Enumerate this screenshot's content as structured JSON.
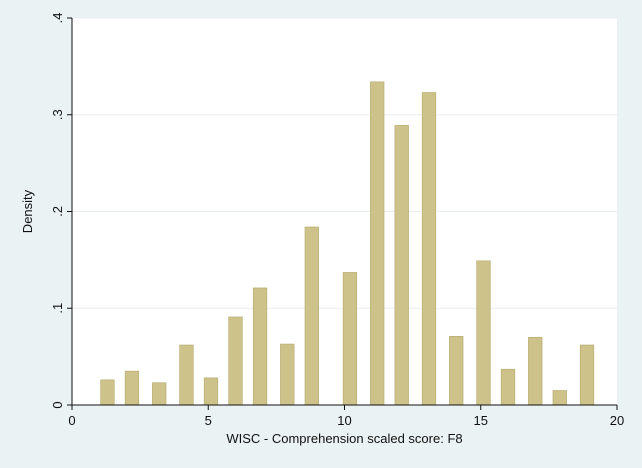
{
  "chart_data": {
    "type": "bar",
    "xlabel": "WISC - Comprehension scaled score: F8",
    "ylabel": "Density",
    "xlim": [
      0,
      20
    ],
    "ylim": [
      0,
      0.4
    ],
    "x_ticks": [
      0,
      5,
      10,
      15,
      20
    ],
    "x_tick_labels": [
      "0",
      "5",
      "10",
      "15",
      "20"
    ],
    "y_ticks": [
      0,
      0.1,
      0.2,
      0.3,
      0.4
    ],
    "y_tick_labels": [
      "0",
      ".1",
      ".2",
      ".3",
      ".4"
    ],
    "grid": true,
    "bar_width": 0.5,
    "x": [
      1.3,
      2.2,
      3.2,
      4.2,
      5.1,
      6.0,
      6.9,
      7.9,
      8.8,
      10.2,
      11.2,
      12.1,
      13.1,
      14.1,
      15.1,
      16.0,
      17.0,
      17.9,
      18.9
    ],
    "values": [
      0.026,
      0.035,
      0.023,
      0.062,
      0.028,
      0.091,
      0.121,
      0.063,
      0.184,
      0.137,
      0.334,
      0.289,
      0.323,
      0.071,
      0.149,
      0.037,
      0.07,
      0.015,
      0.062
    ],
    "colors": {
      "bar": "#cdc38a",
      "bar_stroke": "#b3a86c",
      "plot_bg": "#ffffff",
      "outer_bg": "#eaf2f3",
      "grid": "#e9eef1",
      "axis": "#111111"
    }
  }
}
